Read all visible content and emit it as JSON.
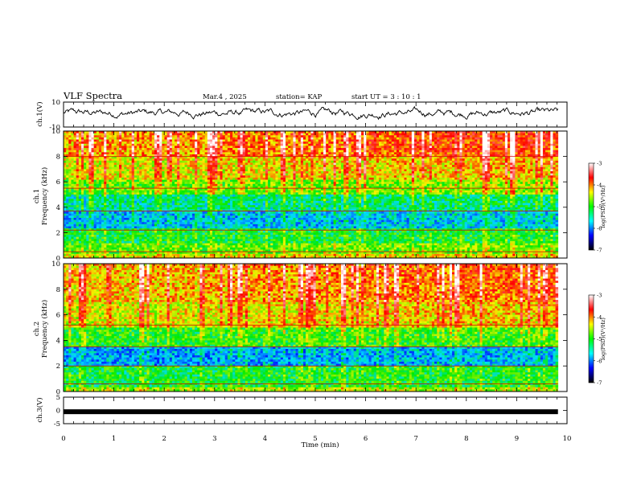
{
  "header": {
    "title": "VLF Spectra",
    "date": "Mar.4 , 2025",
    "station": "station= KAP",
    "start": "start  UT  =   3  : 10 : 1"
  },
  "chart_data": [
    {
      "id": "ch1-waveform",
      "type": "line",
      "ylabel": "ch.1(V)",
      "ylim": [
        -10,
        10
      ],
      "yticks": [
        "10",
        "-10"
      ],
      "xlim": [
        0,
        10
      ],
      "x_end": 9.82,
      "line_color": "#000000",
      "note_values": "noisy waveform oscillating roughly between -4 and +7 V"
    },
    {
      "id": "ch1-spectrogram",
      "type": "heatmap",
      "ylabel": "ch.1\nFrequency  (kHz)",
      "ylim": [
        0,
        10
      ],
      "yticks": [
        "0",
        "2",
        "4",
        "6",
        "8",
        "10"
      ],
      "xlim": [
        0,
        10
      ],
      "x_end": 9.82,
      "bands": [
        {
          "from": 0.0,
          "to": 0.3,
          "level": -4.6
        },
        {
          "from": 0.3,
          "to": 1.2,
          "level": -5.0
        },
        {
          "from": 1.2,
          "to": 2.3,
          "level": -5.3
        },
        {
          "from": 2.3,
          "to": 3.7,
          "level": -5.9
        },
        {
          "from": 3.7,
          "to": 5.0,
          "level": -5.6
        },
        {
          "from": 5.0,
          "to": 6.2,
          "level": -5.0
        },
        {
          "from": 6.2,
          "to": 8.0,
          "level": -4.6
        },
        {
          "from": 8.0,
          "to": 10.0,
          "level": -4.3
        }
      ],
      "lines_kHz": [
        0.5,
        2.2,
        3.7,
        5.5,
        8.0
      ]
    },
    {
      "id": "ch2-spectrogram",
      "type": "heatmap",
      "ylabel": "ch.2\nFrequency  (kHz)",
      "ylim": [
        0,
        10
      ],
      "yticks": [
        "0",
        "2",
        "4",
        "6",
        "8",
        "10"
      ],
      "xlim": [
        0,
        10
      ],
      "x_end": 9.82,
      "bands": [
        {
          "from": 0.0,
          "to": 0.3,
          "level": -4.8
        },
        {
          "from": 0.3,
          "to": 2.0,
          "level": -5.3
        },
        {
          "from": 2.0,
          "to": 3.5,
          "level": -6.0
        },
        {
          "from": 3.5,
          "to": 5.0,
          "level": -5.2
        },
        {
          "from": 5.0,
          "to": 7.0,
          "level": -4.6
        },
        {
          "from": 7.0,
          "to": 10.0,
          "level": -4.4
        }
      ],
      "lines_kHz": [
        0.6,
        2.0,
        3.5,
        5.2
      ]
    },
    {
      "id": "ch3-waveform",
      "type": "line",
      "ylabel": "ch.3(V)",
      "ylim": [
        -5,
        5
      ],
      "yticks": [
        "5",
        "0",
        "-5"
      ],
      "xlim": [
        0,
        10
      ],
      "x_end": 9.82,
      "value": -0.5,
      "line_color": "#000000"
    }
  ],
  "colorbar": {
    "label": "log(PSD)(V²/Hz)",
    "ticks": [
      "-3",
      "-4",
      "-5",
      "-6",
      "-7"
    ],
    "range": [
      -7,
      -3
    ],
    "colors": [
      "#000000",
      "#0000ff",
      "#00ffff",
      "#00ff00",
      "#ffff00",
      "#ff0000",
      "#ffffff"
    ]
  },
  "xaxis": {
    "label": "Time  (min)",
    "ticks": [
      "0",
      "1",
      "2",
      "3",
      "4",
      "5",
      "6",
      "7",
      "8",
      "9",
      "10"
    ]
  }
}
